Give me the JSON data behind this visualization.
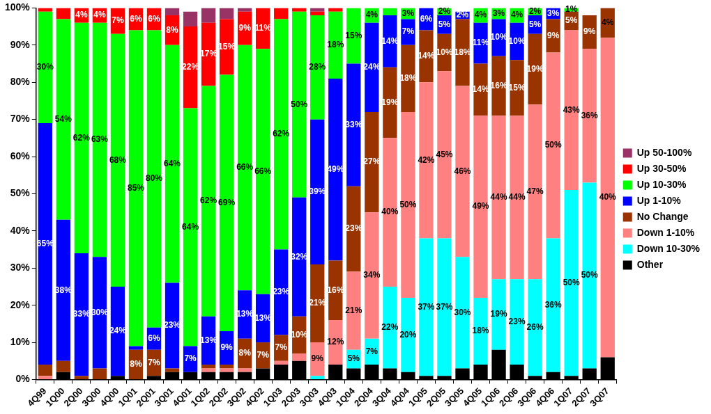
{
  "chart_data": {
    "type": "bar",
    "stacked": true,
    "categories": [
      "4Q99",
      "1Q00",
      "2Q00",
      "3Q00",
      "4Q00",
      "1Q01",
      "2Q01",
      "3Q01",
      "4Q01",
      "1Q02",
      "2Q02",
      "3Q02",
      "4Q02",
      "1Q03",
      "2Q03",
      "3Q03",
      "4Q03",
      "1Q04",
      "2Q04",
      "3Q04",
      "4Q04",
      "1Q05",
      "2Q05",
      "3Q05",
      "4Q05",
      "1Q06",
      "2Q06",
      "3Q06",
      "4Q06",
      "1Q07",
      "2Q07",
      "3Q07"
    ],
    "ylim": [
      0,
      100
    ],
    "yticks": [
      {
        "value": 0,
        "label": "0%"
      },
      {
        "value": 10,
        "label": "10%"
      },
      {
        "value": 20,
        "label": "20%"
      },
      {
        "value": 30,
        "label": "30%"
      },
      {
        "value": 40,
        "label": "40%"
      },
      {
        "value": 50,
        "label": "50%"
      },
      {
        "value": 60,
        "label": "60%"
      },
      {
        "value": 70,
        "label": "70%"
      },
      {
        "value": 80,
        "label": "80%"
      },
      {
        "value": 90,
        "label": "90%"
      },
      {
        "value": 100,
        "label": "100%"
      }
    ],
    "grid": false,
    "legend": "right",
    "series": [
      {
        "name": "Other",
        "color": "#000000",
        "values": [
          0,
          2,
          0,
          0,
          1,
          0,
          1,
          2,
          2,
          2,
          2,
          2,
          3,
          4,
          5,
          0,
          4,
          3,
          4,
          3,
          2,
          1,
          1,
          3,
          4,
          8,
          4,
          1,
          2,
          1,
          3,
          6
        ],
        "value_labels": [
          null,
          null,
          null,
          null,
          null,
          null,
          null,
          null,
          null,
          null,
          null,
          null,
          null,
          null,
          null,
          null,
          null,
          null,
          null,
          null,
          null,
          null,
          null,
          null,
          null,
          null,
          null,
          null,
          null,
          null,
          null,
          null
        ]
      },
      {
        "name": "Down 10-30%",
        "color": "#00ffff",
        "values": [
          0,
          0,
          0,
          0,
          0,
          0,
          0,
          0,
          0,
          0,
          0,
          0,
          0,
          0,
          0,
          1,
          0,
          5,
          7,
          22,
          20,
          37,
          37,
          30,
          18,
          19,
          23,
          26,
          36,
          50,
          50,
          0
        ],
        "value_labels": [
          null,
          null,
          null,
          null,
          null,
          null,
          null,
          null,
          null,
          null,
          null,
          null,
          null,
          null,
          null,
          null,
          null,
          "5%",
          "7%",
          "22%",
          "20%",
          "37%",
          "37%",
          "30%",
          "18%",
          "19%",
          "23%",
          "26%",
          "36%",
          "50%",
          "50%",
          null
        ]
      },
      {
        "name": "Down 1-10%",
        "color": "#ff8080",
        "values": [
          1,
          0,
          0,
          0,
          0,
          0,
          0,
          0,
          0,
          1,
          1,
          1,
          0,
          1,
          2,
          9,
          12,
          21,
          34,
          40,
          50,
          42,
          45,
          46,
          49,
          44,
          44,
          47,
          50,
          43,
          36,
          86
        ],
        "value_labels": [
          null,
          null,
          null,
          null,
          null,
          null,
          null,
          null,
          null,
          null,
          null,
          null,
          null,
          null,
          null,
          "9%",
          "12%",
          "21%",
          "34%",
          "40%",
          "50%",
          "42%",
          "45%",
          "46%",
          "49%",
          "44%",
          "44%",
          "47%",
          "50%",
          "43%",
          "36%",
          null
        ]
      },
      {
        "name": "No Change",
        "color": "#993300",
        "values": [
          3,
          3,
          1,
          3,
          0,
          8,
          7,
          1,
          0,
          1,
          1,
          8,
          7,
          7,
          10,
          21,
          16,
          23,
          27,
          19,
          18,
          14,
          10,
          18,
          14,
          16,
          15,
          19,
          9,
          5,
          9,
          8
        ],
        "value_labels": [
          null,
          null,
          null,
          null,
          null,
          "8%",
          "7%",
          null,
          null,
          null,
          null,
          "8%",
          "7%",
          "7%",
          "10%",
          "21%",
          "16%",
          "23%",
          "27%",
          "19%",
          "18%",
          "14%",
          "10%",
          "18%",
          "14%",
          "16%",
          "15%",
          "19%",
          "9%",
          "5%",
          "9%",
          null
        ]
      },
      {
        "name": "Up 1-10%",
        "color": "#0000ff",
        "values": [
          65,
          38,
          33,
          30,
          24,
          1,
          6,
          23,
          7,
          13,
          9,
          13,
          13,
          23,
          32,
          39,
          49,
          33,
          24,
          14,
          7,
          6,
          5,
          2,
          11,
          10,
          10,
          5,
          3,
          0,
          0,
          0
        ],
        "value_labels": [
          "65%",
          "38%",
          "33%",
          "30%",
          "24%",
          null,
          "6%",
          "23%",
          "7%",
          "13%",
          "9%",
          "13%",
          "13%",
          "23%",
          "32%",
          "39%",
          "49%",
          "33%",
          "24%",
          "14%",
          "7%",
          "6%",
          "5%",
          "2%",
          "11%",
          "10%",
          "10%",
          "5%",
          "3%",
          null,
          null,
          null
        ]
      },
      {
        "name": "Up 10-30%",
        "color": "#00ff00",
        "values": [
          30,
          54,
          62,
          63,
          68,
          85,
          80,
          64,
          64,
          62,
          69,
          66,
          66,
          62,
          50,
          28,
          18,
          15,
          4,
          2,
          3,
          0,
          2,
          0,
          4,
          3,
          4,
          2,
          0,
          1,
          0,
          0
        ],
        "value_labels": [
          "30%",
          "54%",
          "62%",
          "63%",
          "68%",
          "85%",
          "80%",
          "64%",
          "64%",
          "62%",
          "69%",
          "66%",
          "66%",
          "62%",
          "50%",
          "28%",
          "18%",
          "15%",
          "4%",
          null,
          "3%",
          null,
          "2%",
          null,
          "4%",
          "3%",
          "4%",
          "2%",
          null,
          "1%",
          null,
          null
        ]
      },
      {
        "name": "Up 30-50%",
        "color": "#ff0000",
        "values": [
          1,
          3,
          4,
          4,
          7,
          6,
          6,
          8,
          22,
          17,
          15,
          9,
          11,
          3,
          1,
          1,
          1,
          0,
          0,
          0,
          0,
          0,
          0,
          0,
          0,
          0,
          0,
          0,
          0,
          0,
          0,
          0
        ],
        "value_labels": [
          null,
          null,
          "4%",
          "4%",
          "7%",
          "6%",
          "6%",
          "8%",
          "22%",
          "17%",
          "15%",
          "9%",
          "11%",
          null,
          null,
          null,
          null,
          null,
          null,
          null,
          null,
          null,
          null,
          null,
          null,
          null,
          null,
          null,
          null,
          null,
          null,
          null
        ]
      },
      {
        "name": "Up 50-100%",
        "color": "#993366",
        "values": [
          0,
          0,
          0,
          0,
          0,
          0,
          0,
          2,
          4,
          4,
          3,
          1,
          0,
          0,
          0,
          1,
          0,
          0,
          0,
          0,
          0,
          0,
          0,
          0,
          0,
          0,
          0,
          0,
          0,
          0,
          0,
          0
        ],
        "value_labels": [
          null,
          null,
          null,
          null,
          null,
          null,
          null,
          null,
          null,
          null,
          null,
          null,
          null,
          null,
          null,
          null,
          null,
          null,
          null,
          null,
          null,
          null,
          null,
          null,
          null,
          null,
          null,
          null,
          null,
          null,
          null,
          null
        ]
      }
    ],
    "annotations": [
      {
        "text": "4%",
        "x": "3Q07",
        "y": 96
      },
      {
        "text": "40%",
        "x": "3Q07",
        "y": 49
      }
    ]
  }
}
